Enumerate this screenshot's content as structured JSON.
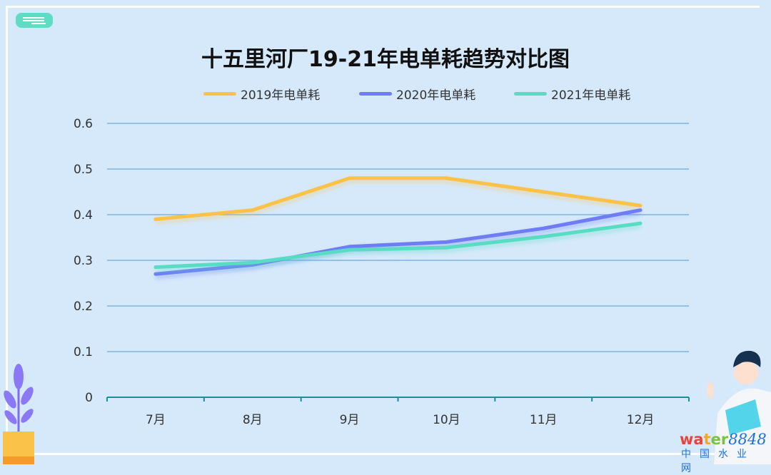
{
  "chart_data": {
    "type": "line",
    "title": "十五里河厂19-21年电单耗趋势对比图",
    "categories": [
      "7月",
      "8月",
      "9月",
      "10月",
      "11月",
      "12月"
    ],
    "ylim": [
      0,
      0.6
    ],
    "yticks": [
      "0",
      "0.1",
      "0.2",
      "0.3",
      "0.4",
      "0.5",
      "0.6"
    ],
    "grid": true,
    "legend_position": "top-center",
    "series": [
      {
        "name": "2019年电单耗",
        "color": "#fbc24a",
        "values": [
          0.39,
          0.41,
          0.48,
          0.48,
          0.45,
          0.42
        ]
      },
      {
        "name": "2020年电单耗",
        "color": "#6f7cf6",
        "values": [
          0.27,
          0.29,
          0.33,
          0.34,
          0.37,
          0.41
        ]
      },
      {
        "name": "2021年电单耗",
        "color": "#58dcc4",
        "values": [
          0.285,
          0.295,
          0.323,
          0.328,
          0.352,
          0.381
        ]
      }
    ]
  },
  "watermark": {
    "logo": "water8848.com",
    "subtitle": "中国水业网"
  }
}
